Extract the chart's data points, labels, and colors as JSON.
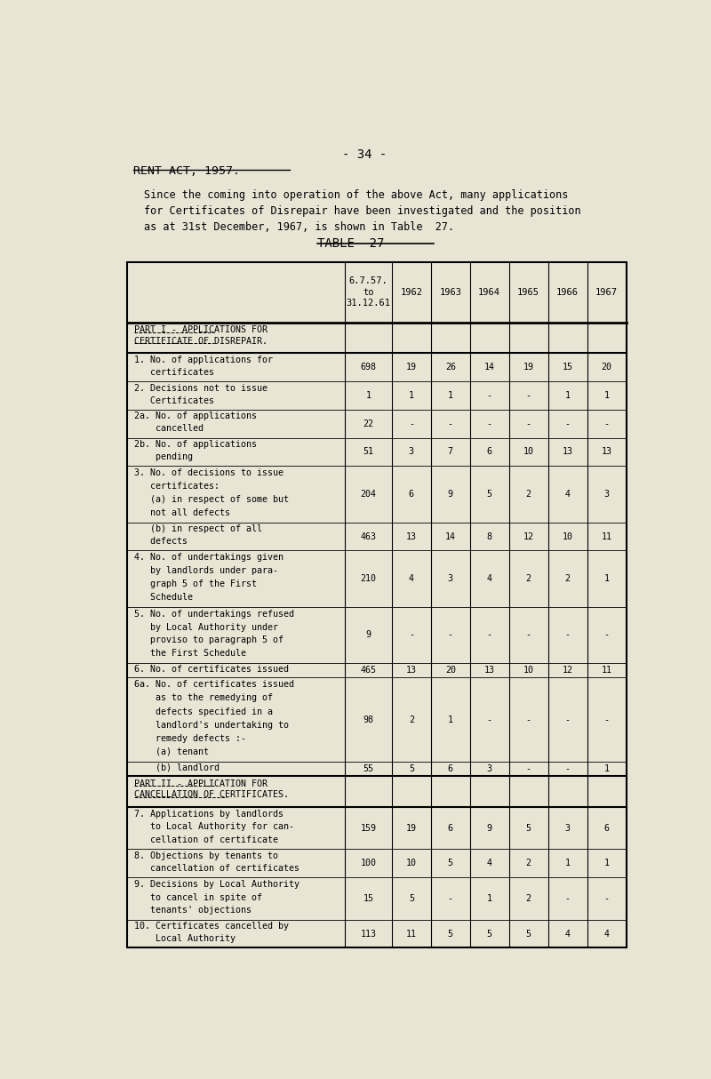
{
  "page_number": "- 34 -",
  "title": "RENT ACT, 1957.",
  "intro_text": "Since the coming into operation of the above Act, many applications\nfor Certificates of Disrepair have been investigated and the position\nas at 31st December, 1967, is shown in Table  27.",
  "table_title": "TABLE  27",
  "bg_color": "#e8e5d5",
  "col_headers": [
    "6.7.57.\nto\n31.12.61",
    "1962",
    "1963",
    "1964",
    "1965",
    "1966",
    "1967"
  ],
  "rows": [
    {
      "label": "PART I - APPLICATIONS FOR\nCERTIFICATE OF DISREPAIR.",
      "values": [
        "",
        "",
        "",
        "",
        "",
        "",
        ""
      ],
      "type": "section_header"
    },
    {
      "label": "1. No. of applications for\n   certificates",
      "values": [
        "698",
        "19",
        "26",
        "14",
        "19",
        "15",
        "20"
      ],
      "type": "data",
      "lines": 2
    },
    {
      "label": "2. Decisions not to issue\n   Certificates",
      "values": [
        "1",
        "1",
        "1",
        "-",
        "-",
        "1",
        "1"
      ],
      "type": "data",
      "lines": 2
    },
    {
      "label": "2a. No. of applications\n    cancelled",
      "values": [
        "22",
        "-",
        "-",
        "-",
        "-",
        "-",
        "-"
      ],
      "type": "data",
      "lines": 2
    },
    {
      "label": "2b. No. of applications\n    pending",
      "values": [
        "51",
        "3",
        "7",
        "6",
        "10",
        "13",
        "13"
      ],
      "type": "data",
      "lines": 2
    },
    {
      "label": "3. No. of decisions to issue\n   certificates:\n   (a) in respect of some but\n   not all defects",
      "values": [
        "204",
        "6",
        "9",
        "5",
        "2",
        "4",
        "3"
      ],
      "type": "data",
      "lines": 4
    },
    {
      "label": "   (b) in respect of all\n   defects",
      "values": [
        "463",
        "13",
        "14",
        "8",
        "12",
        "10",
        "11"
      ],
      "type": "data",
      "lines": 2
    },
    {
      "label": "4. No. of undertakings given\n   by landlords under para-\n   graph 5 of the First\n   Schedule",
      "values": [
        "210",
        "4",
        "3",
        "4",
        "2",
        "2",
        "1"
      ],
      "type": "data",
      "lines": 4
    },
    {
      "label": "5. No. of undertakings refused\n   by Local Authority under\n   proviso to paragraph 5 of\n   the First Schedule",
      "values": [
        "9",
        "-",
        "-",
        "-",
        "-",
        "-",
        "-"
      ],
      "type": "data",
      "lines": 4
    },
    {
      "label": "6. No. of certificates issued",
      "values": [
        "465",
        "13",
        "20",
        "13",
        "10",
        "12",
        "11"
      ],
      "type": "data",
      "lines": 1
    },
    {
      "label": "6a. No. of certificates issued\n    as to the remedying of\n    defects specified in a\n    landlord's undertaking to\n    remedy defects :-\n    (a) tenant",
      "values": [
        "98",
        "2",
        "1",
        "-",
        "-",
        "-",
        "-"
      ],
      "type": "data",
      "lines": 6
    },
    {
      "label": "    (b) landlord",
      "values": [
        "55",
        "5",
        "6",
        "3",
        "-",
        "-",
        "1"
      ],
      "type": "data",
      "lines": 1
    },
    {
      "label": "PART II - APPLICATION FOR\nCANCELLATION OF CERTIFICATES.",
      "values": [
        "",
        "",
        "",
        "",
        "",
        "",
        ""
      ],
      "type": "section_header"
    },
    {
      "label": "7. Applications by landlords\n   to Local Authority for can-\n   cellation of certificate",
      "values": [
        "159",
        "19",
        "6",
        "9",
        "5",
        "3",
        "6"
      ],
      "type": "data",
      "lines": 3
    },
    {
      "label": "8. Objections by tenants to\n   cancellation of certificates",
      "values": [
        "100",
        "10",
        "5",
        "4",
        "2",
        "1",
        "1"
      ],
      "type": "data",
      "lines": 2
    },
    {
      "label": "9. Decisions by Local Authority\n   to cancel in spite of\n   tenants' objections",
      "values": [
        "15",
        "5",
        "-",
        "1",
        "2",
        "-",
        "-"
      ],
      "type": "data",
      "lines": 3
    },
    {
      "label": "10. Certificates cancelled by\n    Local Authority",
      "values": [
        "113",
        "11",
        "5",
        "5",
        "5",
        "4",
        "4"
      ],
      "type": "data",
      "lines": 2
    }
  ]
}
